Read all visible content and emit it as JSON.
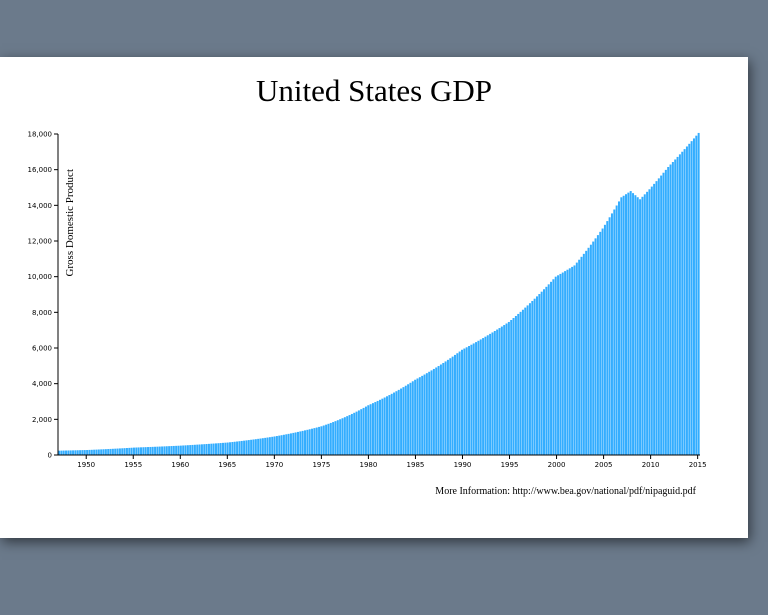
{
  "colors": {
    "bar": "#33adff",
    "axis": "#000000"
  },
  "chart_data": {
    "type": "bar",
    "title": "United States GDP",
    "ylabel": "Gross Domestic Product",
    "xlabel": "",
    "xlim": [
      1947,
      2015.25
    ],
    "ylim": [
      0,
      18000
    ],
    "x_ticks": [
      "1950",
      "1955",
      "1960",
      "1965",
      "1970",
      "1975",
      "1980",
      "1985",
      "1990",
      "1995",
      "2000",
      "2005",
      "2010",
      "2015"
    ],
    "y_ticks": [
      "0",
      "2,000",
      "4,000",
      "6,000",
      "8,000",
      "10,000",
      "12,000",
      "14,000",
      "16,000",
      "18,000"
    ],
    "frequency": "quarterly",
    "series": [
      {
        "points": [
          [
            1947,
            243
          ],
          [
            1950,
            280
          ],
          [
            1955,
            415
          ],
          [
            1960,
            526
          ],
          [
            1965,
            700
          ],
          [
            1970,
            1040
          ],
          [
            1975,
            1610
          ],
          [
            1980,
            2790
          ],
          [
            1985,
            4220
          ],
          [
            1990,
            5900
          ],
          [
            1995,
            7460
          ],
          [
            2000,
            10000
          ],
          [
            2002,
            10630
          ],
          [
            2005,
            12700
          ],
          [
            2007,
            14450
          ],
          [
            2008,
            14800
          ],
          [
            2009,
            14340
          ],
          [
            2010,
            14900
          ],
          [
            2012,
            16150
          ],
          [
            2014,
            17300
          ],
          [
            2015.25,
            18060
          ]
        ]
      }
    ]
  },
  "footer": {
    "text": "More Information: http://www.bea.gov/national/pdf/nipaguid.pdf"
  }
}
